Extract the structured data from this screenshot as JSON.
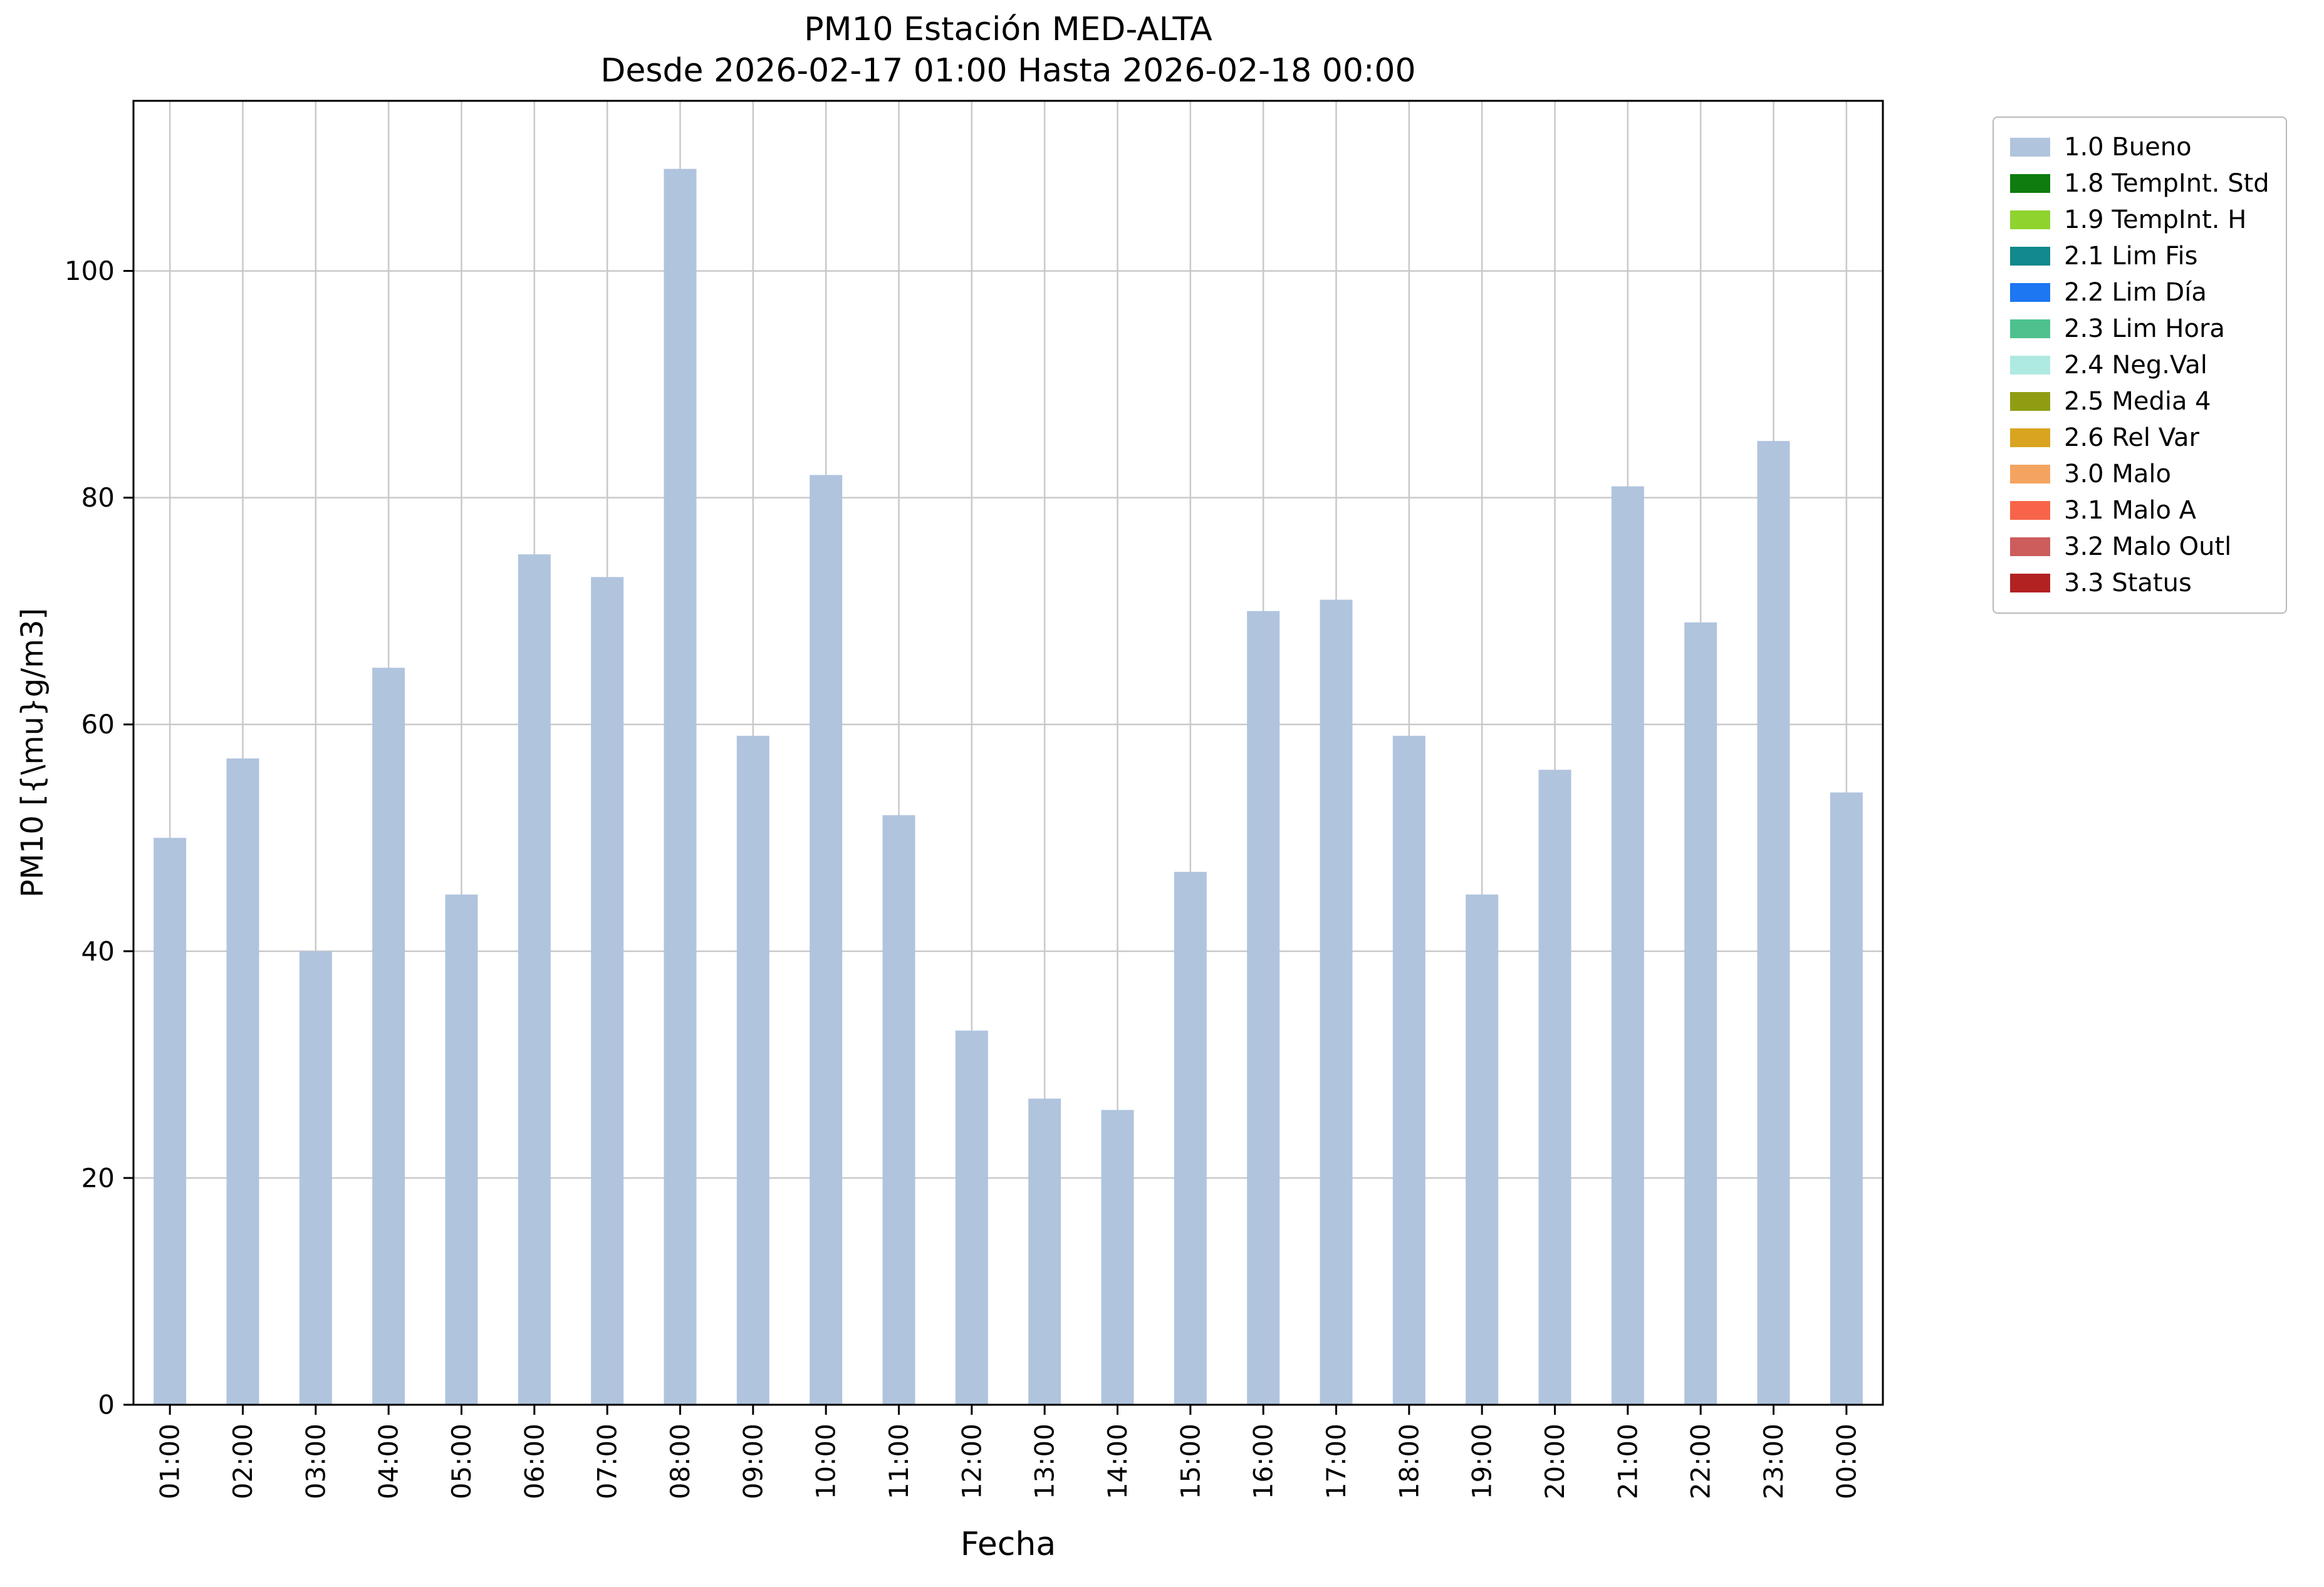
{
  "chart_data": {
    "type": "bar",
    "title": "PM10 Estación MED-ALTA\nDesde 2026-02-17 01:00 Hasta 2026-02-18 00:00",
    "title_lines": [
      "PM10 Estación MED-ALTA",
      "Desde 2026-02-17 01:00 Hasta 2026-02-18 00:00"
    ],
    "xlabel": "Fecha",
    "ylabel": "PM10 [{\\mu}g/m3]",
    "categories": [
      "01:00",
      "02:00",
      "03:00",
      "04:00",
      "05:00",
      "06:00",
      "07:00",
      "08:00",
      "09:00",
      "10:00",
      "11:00",
      "12:00",
      "13:00",
      "14:00",
      "15:00",
      "16:00",
      "17:00",
      "18:00",
      "19:00",
      "20:00",
      "21:00",
      "22:00",
      "23:00",
      "00:00"
    ],
    "values": [
      50,
      57,
      40,
      65,
      45,
      75,
      73,
      109,
      59,
      82,
      52,
      33,
      27,
      26,
      47,
      70,
      71,
      59,
      45,
      56,
      81,
      69,
      85,
      54
    ],
    "ylim": [
      0,
      115
    ],
    "yticks": [
      0,
      20,
      40,
      60,
      80,
      100
    ],
    "grid": true,
    "colors": {
      "bar": "#b0c4de",
      "grid": "#c9c9c9",
      "axes": "#000000"
    },
    "legend_position": "outside upper right",
    "legend": [
      {
        "label": "1.0 Bueno",
        "color": "#b0c4de"
      },
      {
        "label": "1.8 TempInt. Std",
        "color": "#0e7c0e"
      },
      {
        "label": "1.9 TempInt. H",
        "color": "#8fd32f"
      },
      {
        "label": "2.1 Lim Fis",
        "color": "#11898d"
      },
      {
        "label": "2.2 Lim Día",
        "color": "#1d76f2"
      },
      {
        "label": "2.3 Lim Hora",
        "color": "#4ec18e"
      },
      {
        "label": "2.4 Neg.Val",
        "color": "#aeeae2"
      },
      {
        "label": "2.5 Media 4",
        "color": "#8f9d12"
      },
      {
        "label": "2.6 Rel Var",
        "color": "#d9a41f"
      },
      {
        "label": "3.0 Malo",
        "color": "#f4a460"
      },
      {
        "label": "3.1 Malo A",
        "color": "#f86449"
      },
      {
        "label": "3.2 Malo Outl",
        "color": "#cd5c5c"
      },
      {
        "label": "3.3 Status",
        "color": "#b22222"
      }
    ]
  }
}
